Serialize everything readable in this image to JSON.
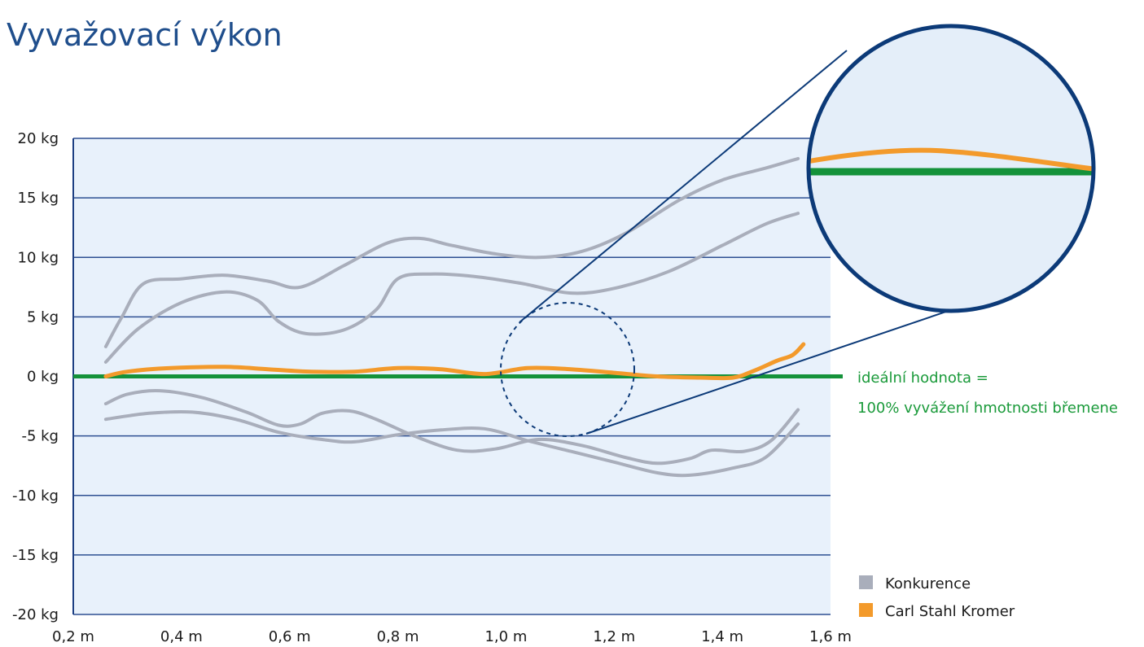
{
  "chart_data": {
    "type": "line",
    "title": "Vyvažovací výkon",
    "xlabel": "",
    "ylabel": "",
    "xlim": [
      0.2,
      1.6
    ],
    "ylim": [
      -20,
      20
    ],
    "x_ticks": [
      0.2,
      0.4,
      0.6,
      0.8,
      1.0,
      1.2,
      1.4,
      1.6
    ],
    "x_tick_labels": [
      "0,2 m",
      "0,4 m",
      "0,6 m",
      "0,8 m",
      "1,0 m",
      "1,2 m",
      "1,4 m",
      "1,6 m"
    ],
    "y_ticks": [
      20,
      15,
      10,
      5,
      0,
      -5,
      -10,
      -15,
      -20
    ],
    "y_tick_labels": [
      "20 kg",
      "15 kg",
      "10 kg",
      "5 kg",
      "0 kg",
      "-5 kg",
      "-10 kg",
      "-15 kg",
      "-20 kg"
    ],
    "grid": true,
    "legend_position": "bottom-right",
    "legend": [
      {
        "label": "Konkurence",
        "color": "#a9aebb"
      },
      {
        "label": "Carl Stahl Kromer",
        "color": "#f39a2b"
      }
    ],
    "ideal_line": {
      "y": 0,
      "color": "#14923a"
    },
    "annotation": {
      "line1": "ideální hodnota =",
      "line2": "100% vyvážení hmotnosti břemene"
    },
    "colors": {
      "plot_background": "#e8f1fb",
      "grid": "#2d4f92",
      "axis": "#1d3f83",
      "zoom_circle": "#0c3a78",
      "zoom_background": "#e4eef9"
    },
    "series": [
      {
        "group": "Konkurence",
        "color": "#a9aebb",
        "points": [
          [
            0.26,
            2.5
          ],
          [
            0.29,
            5
          ],
          [
            0.33,
            7.8
          ],
          [
            0.4,
            8.2
          ],
          [
            0.48,
            8.5
          ],
          [
            0.56,
            8.0
          ],
          [
            0.62,
            7.5
          ],
          [
            0.7,
            9.3
          ],
          [
            0.78,
            11.2
          ],
          [
            0.84,
            11.6
          ],
          [
            0.9,
            11.0
          ],
          [
            0.98,
            10.3
          ],
          [
            1.06,
            10.0
          ],
          [
            1.14,
            10.5
          ],
          [
            1.22,
            12.0
          ],
          [
            1.32,
            14.8
          ],
          [
            1.4,
            16.5
          ],
          [
            1.48,
            17.5
          ],
          [
            1.54,
            18.3
          ]
        ]
      },
      {
        "group": "Konkurence",
        "color": "#a9aebb",
        "points": [
          [
            0.26,
            1.2
          ],
          [
            0.32,
            4.0
          ],
          [
            0.4,
            6.2
          ],
          [
            0.48,
            7.1
          ],
          [
            0.54,
            6.4
          ],
          [
            0.58,
            4.6
          ],
          [
            0.63,
            3.6
          ],
          [
            0.7,
            3.9
          ],
          [
            0.76,
            5.6
          ],
          [
            0.8,
            8.2
          ],
          [
            0.86,
            8.6
          ],
          [
            0.94,
            8.4
          ],
          [
            1.03,
            7.8
          ],
          [
            1.12,
            7.0
          ],
          [
            1.2,
            7.4
          ],
          [
            1.3,
            8.8
          ],
          [
            1.4,
            11.0
          ],
          [
            1.48,
            12.8
          ],
          [
            1.54,
            13.7
          ]
        ]
      },
      {
        "group": "Konkurence",
        "color": "#a9aebb",
        "points": [
          [
            0.26,
            -2.3
          ],
          [
            0.3,
            -1.5
          ],
          [
            0.36,
            -1.2
          ],
          [
            0.44,
            -1.8
          ],
          [
            0.52,
            -3.0
          ],
          [
            0.58,
            -4.1
          ],
          [
            0.62,
            -4.0
          ],
          [
            0.66,
            -3.1
          ],
          [
            0.71,
            -2.9
          ],
          [
            0.76,
            -3.6
          ],
          [
            0.83,
            -5.0
          ],
          [
            0.91,
            -6.2
          ],
          [
            0.98,
            -6.1
          ],
          [
            1.06,
            -5.3
          ],
          [
            1.14,
            -5.8
          ],
          [
            1.22,
            -6.8
          ],
          [
            1.28,
            -7.3
          ],
          [
            1.34,
            -6.9
          ],
          [
            1.38,
            -6.2
          ],
          [
            1.44,
            -6.3
          ],
          [
            1.49,
            -5.4
          ],
          [
            1.54,
            -2.8
          ]
        ]
      },
      {
        "group": "Konkurence",
        "color": "#a9aebb",
        "points": [
          [
            0.26,
            -3.6
          ],
          [
            0.34,
            -3.1
          ],
          [
            0.42,
            -3.0
          ],
          [
            0.5,
            -3.6
          ],
          [
            0.58,
            -4.7
          ],
          [
            0.66,
            -5.3
          ],
          [
            0.72,
            -5.5
          ],
          [
            0.8,
            -4.9
          ],
          [
            0.88,
            -4.5
          ],
          [
            0.96,
            -4.4
          ],
          [
            1.04,
            -5.4
          ],
          [
            1.12,
            -6.3
          ],
          [
            1.2,
            -7.2
          ],
          [
            1.28,
            -8.1
          ],
          [
            1.34,
            -8.3
          ],
          [
            1.42,
            -7.7
          ],
          [
            1.48,
            -6.8
          ],
          [
            1.54,
            -4.0
          ]
        ]
      },
      {
        "group": "Carl Stahl Kromer",
        "color": "#f39a2b",
        "points": [
          [
            0.26,
            0.0
          ],
          [
            0.3,
            0.4
          ],
          [
            0.38,
            0.7
          ],
          [
            0.48,
            0.8
          ],
          [
            0.56,
            0.6
          ],
          [
            0.64,
            0.4
          ],
          [
            0.72,
            0.4
          ],
          [
            0.8,
            0.7
          ],
          [
            0.88,
            0.6
          ],
          [
            0.96,
            0.2
          ],
          [
            1.04,
            0.7
          ],
          [
            1.12,
            0.6
          ],
          [
            1.2,
            0.3
          ],
          [
            1.28,
            0.0
          ],
          [
            1.36,
            -0.1
          ],
          [
            1.42,
            -0.1
          ],
          [
            1.46,
            0.5
          ],
          [
            1.5,
            1.3
          ],
          [
            1.53,
            1.8
          ],
          [
            1.55,
            2.7
          ]
        ]
      }
    ]
  }
}
